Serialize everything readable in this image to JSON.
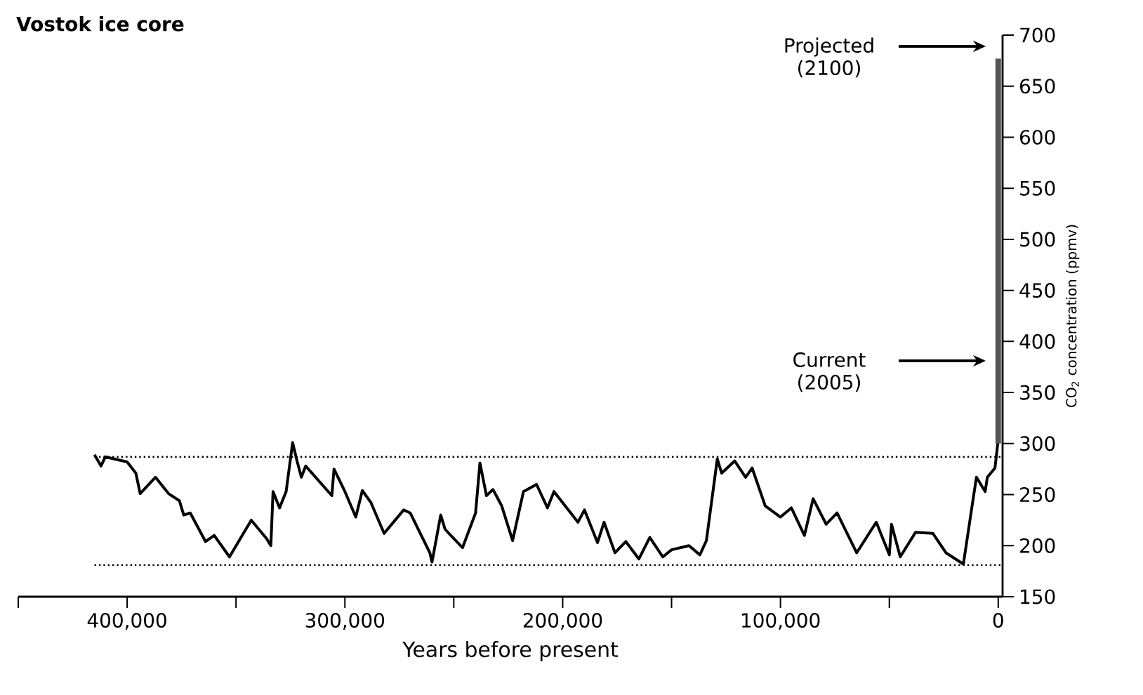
{
  "chart_data": {
    "type": "line",
    "title": "Vostok ice core",
    "xlabel": "Years before present",
    "ylabel": "CO$_{2}$ concentration (ppmv)",
    "xlim": [
      450000,
      -2000
    ],
    "ylim": [
      150,
      700
    ],
    "xticks": [
      {
        "value": 450000,
        "label": null
      },
      {
        "value": 400000,
        "label": "400,000"
      },
      {
        "value": 350000,
        "label": null
      },
      {
        "value": 300000,
        "label": "300,000"
      },
      {
        "value": 250000,
        "label": null
      },
      {
        "value": 200000,
        "label": "200,000"
      },
      {
        "value": 150000,
        "label": null
      },
      {
        "value": 100000,
        "label": "100,000"
      },
      {
        "value": 50000,
        "label": null
      },
      0
    ],
    "yticks": [
      150,
      200,
      250,
      300,
      350,
      400,
      450,
      500,
      550,
      600,
      650,
      700
    ],
    "series": [
      {
        "color": "#000000",
        "x": [
          415000,
          412000,
          410000,
          400000,
          396000,
          394000,
          387000,
          381000,
          376000,
          374000,
          371000,
          364000,
          360000,
          353000,
          343000,
          336000,
          334000,
          333000,
          330000,
          327000,
          324000,
          322000,
          320000,
          318000,
          306000,
          305000,
          300000,
          295000,
          292000,
          288000,
          282000,
          273000,
          270000,
          261000,
          260000,
          256000,
          254000,
          246000,
          240000,
          238000,
          235000,
          232000,
          228000,
          223000,
          218000,
          212000,
          207000,
          204000,
          193000,
          190000,
          184000,
          181000,
          176000,
          171000,
          165000,
          160000,
          154000,
          150000,
          144000,
          142000,
          137000,
          134000,
          129000,
          127000,
          121000,
          116000,
          113000,
          107000,
          100000,
          95000,
          89000,
          85000,
          79000,
          74000,
          65000,
          56000,
          50000,
          49000,
          45000,
          38000,
          30000,
          24000,
          16000,
          12000,
          10000,
          6000,
          5000,
          1500,
          0
        ],
        "values": [
          289,
          278,
          287,
          282,
          271,
          251,
          267,
          251,
          244,
          230,
          232,
          204,
          210,
          189,
          225,
          207,
          200,
          253,
          237,
          253,
          301,
          283,
          267,
          278,
          249,
          275,
          253,
          228,
          254,
          242,
          212,
          235,
          232,
          193,
          184,
          230,
          216,
          198,
          232,
          281,
          249,
          255,
          239,
          205,
          253,
          260,
          237,
          253,
          223,
          235,
          203,
          223,
          193,
          204,
          187,
          208,
          189,
          196,
          199,
          200,
          191,
          205,
          285,
          271,
          283,
          267,
          276,
          239,
          228,
          237,
          210,
          246,
          221,
          232,
          193,
          223,
          191,
          221,
          189,
          213,
          212,
          193,
          182,
          239,
          267,
          253,
          267,
          276,
          304
        ]
      },
      {
        "color": "#555555",
        "x": [
          0,
          0
        ],
        "values": [
          300,
          677
        ]
      }
    ],
    "ref_lines": [
      {
        "axis": "y",
        "value": 287,
        "line_style": "dotted"
      },
      {
        "axis": "y",
        "value": 181,
        "line_style": "dotted"
      }
    ],
    "annotations": [
      "Projected (2100)",
      "Current (2005)"
    ]
  }
}
